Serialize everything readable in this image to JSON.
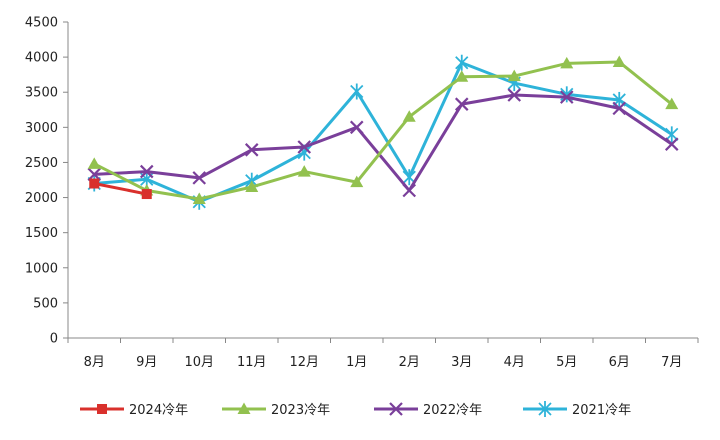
{
  "chart_data": {
    "type": "line",
    "title": "",
    "xlabel": "",
    "ylabel": "",
    "categories": [
      "8月",
      "9月",
      "10月",
      "11月",
      "12月",
      "1月",
      "2月",
      "3月",
      "4月",
      "5月",
      "6月",
      "7月"
    ],
    "ylim": [
      0,
      4500
    ],
    "yticks": [
      "0",
      "500",
      "1000",
      "1500",
      "2000",
      "2500",
      "3000",
      "3500",
      "4000",
      "4500"
    ],
    "grid": false,
    "legend": "bottom",
    "series": [
      {
        "name": "2024冷年",
        "color": "#d9302c",
        "marker": "square",
        "values": [
          2200,
          2050,
          null,
          null,
          null,
          null,
          null,
          null,
          null,
          null,
          null,
          null
        ]
      },
      {
        "name": "2023冷年",
        "color": "#92c14f",
        "marker": "triangle",
        "values": [
          2480,
          2100,
          1980,
          2150,
          2370,
          2220,
          3150,
          3720,
          3730,
          3910,
          3930,
          3330
        ]
      },
      {
        "name": "2022冷年",
        "color": "#7a3f9a",
        "marker": "x",
        "values": [
          2330,
          2370,
          2280,
          2680,
          2720,
          3000,
          2100,
          3330,
          3460,
          3430,
          3270,
          2760
        ]
      },
      {
        "name": "2021冷年",
        "color": "#2eb3d9",
        "marker": "star",
        "values": [
          2200,
          2260,
          1940,
          2240,
          2640,
          3510,
          2290,
          3920,
          3630,
          3470,
          3390,
          2900
        ]
      }
    ]
  }
}
